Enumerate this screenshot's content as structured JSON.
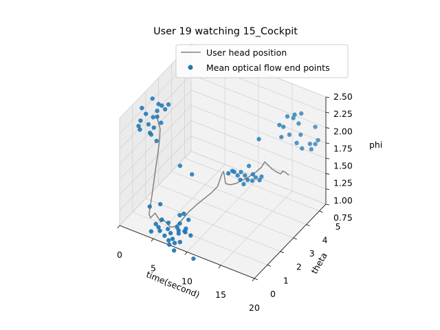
{
  "chart_data": {
    "type": "scatter-3d",
    "title": "User 19 watching 15_Cockpit",
    "xlabel": "time(second)",
    "ylabel": "theta",
    "zlabel": "phi",
    "xlim": [
      0,
      20
    ],
    "ylim": [
      0,
      5.5
    ],
    "zlim": [
      0.75,
      2.5
    ],
    "xticks": [
      "0",
      "5",
      "10",
      "15",
      "20"
    ],
    "yticks": [
      "0",
      "1",
      "2",
      "3",
      "4",
      "5"
    ],
    "zticks": [
      "0.75",
      "1.00",
      "1.25",
      "1.50",
      "1.75",
      "2.00",
      "2.25",
      "2.50"
    ],
    "grid": true,
    "legend_position": "top-right",
    "colors": {
      "line": "#808080",
      "scatter": "#1f77b4"
    },
    "series": [
      {
        "name": "User head position",
        "kind": "line",
        "points": [
          [
            0.0,
            2.8,
            1.93
          ],
          [
            0.5,
            2.7,
            1.88
          ],
          [
            1.0,
            2.6,
            1.8
          ],
          [
            1.5,
            2.3,
            1.72
          ],
          [
            2.0,
            1.9,
            1.58
          ],
          [
            2.5,
            1.45,
            1.43
          ],
          [
            3.0,
            1.0,
            1.25
          ],
          [
            3.3,
            0.7,
            1.12
          ],
          [
            3.6,
            0.4,
            1.0
          ],
          [
            4.0,
            0.3,
            0.98
          ],
          [
            4.5,
            0.4,
            1.06
          ],
          [
            5.0,
            0.35,
            1.02
          ],
          [
            5.5,
            0.3,
            0.98
          ],
          [
            6.0,
            0.32,
            1.02
          ],
          [
            7.0,
            0.3,
            0.96
          ],
          [
            7.5,
            0.35,
            0.98
          ],
          [
            8.0,
            0.5,
            1.04
          ],
          [
            8.5,
            0.9,
            1.14
          ],
          [
            9.0,
            1.3,
            1.2
          ],
          [
            9.5,
            1.6,
            1.25
          ],
          [
            10.0,
            1.9,
            1.3
          ],
          [
            10.5,
            2.1,
            1.38
          ],
          [
            10.8,
            2.25,
            1.55
          ],
          [
            11.0,
            2.3,
            1.6
          ],
          [
            11.2,
            2.35,
            1.4
          ],
          [
            11.5,
            2.55,
            1.35
          ],
          [
            12.0,
            2.75,
            1.35
          ],
          [
            12.5,
            2.95,
            1.38
          ],
          [
            13.0,
            3.2,
            1.4
          ],
          [
            13.5,
            3.45,
            1.44
          ],
          [
            14.0,
            3.65,
            1.5
          ],
          [
            14.3,
            3.75,
            1.58
          ],
          [
            14.6,
            3.85,
            1.52
          ],
          [
            15.0,
            3.95,
            1.45
          ],
          [
            15.5,
            4.05,
            1.4
          ],
          [
            16.0,
            4.1,
            1.38
          ],
          [
            16.3,
            4.1,
            1.44
          ],
          [
            16.6,
            4.15,
            1.42
          ],
          [
            17.0,
            4.2,
            1.38
          ]
        ]
      },
      {
        "name": "Mean optical flow end points",
        "kind": "scatter",
        "points": [
          [
            0.7,
            1.35,
            2.4
          ],
          [
            0.6,
            1.3,
            2.2
          ],
          [
            1.1,
            1.45,
            2.3
          ],
          [
            1.5,
            1.75,
            2.5
          ],
          [
            0.3,
            1.3,
            2.1
          ],
          [
            0.5,
            1.3,
            2.05
          ],
          [
            2.0,
            1.85,
            2.3
          ],
          [
            2.4,
            1.75,
            2.45
          ],
          [
            2.6,
            1.9,
            2.4
          ],
          [
            3.2,
            2.1,
            2.4
          ],
          [
            1.6,
            1.75,
            2.2
          ],
          [
            2.3,
            1.7,
            2.25
          ],
          [
            2.7,
            2.1,
            2.3
          ],
          [
            1.2,
            1.6,
            2.1
          ],
          [
            1.8,
            1.7,
            2.05
          ],
          [
            2.4,
            1.95,
            2.1
          ],
          [
            1.6,
            1.5,
            2.0
          ],
          [
            1.6,
            1.6,
            1.95
          ],
          [
            2.2,
            1.7,
            1.85
          ],
          [
            3.5,
            0.5,
            1.1
          ],
          [
            4.4,
            0.85,
            1.1
          ],
          [
            4.7,
            0.35,
            0.9
          ],
          [
            5.2,
            0.55,
            0.95
          ],
          [
            4.2,
            0.25,
            0.78
          ],
          [
            5.0,
            0.4,
            0.85
          ],
          [
            5.8,
            0.75,
            0.88
          ],
          [
            7.0,
            1.0,
            1.0
          ],
          [
            7.4,
            1.1,
            1.02
          ],
          [
            7.1,
            0.95,
            0.88
          ],
          [
            8.1,
            1.1,
            0.95
          ],
          [
            5.2,
            0.4,
            0.8
          ],
          [
            6.0,
            0.6,
            0.82
          ],
          [
            7.0,
            0.8,
            0.85
          ],
          [
            7.9,
            0.9,
            0.8
          ],
          [
            5.9,
            0.4,
            0.75
          ],
          [
            6.6,
            0.5,
            0.8
          ],
          [
            7.3,
            0.75,
            0.82
          ],
          [
            8.1,
            0.9,
            0.85
          ],
          [
            6.5,
            0.4,
            0.7
          ],
          [
            6.9,
            0.5,
            0.72
          ],
          [
            7.5,
            0.65,
            0.8
          ],
          [
            8.2,
            0.8,
            0.82
          ],
          [
            9.0,
            0.8,
            0.8
          ],
          [
            6.7,
            0.35,
            0.65
          ],
          [
            7.3,
            0.45,
            0.68
          ],
          [
            7.9,
            0.55,
            0.7
          ],
          [
            7.5,
            0.3,
            0.6
          ],
          [
            9.8,
            0.6,
            0.5
          ],
          [
            12.2,
            2.5,
            1.6
          ],
          [
            12.8,
            2.7,
            1.58
          ],
          [
            13.4,
            3.0,
            1.64
          ],
          [
            12.6,
            2.55,
            1.55
          ],
          [
            13.2,
            2.8,
            1.52
          ],
          [
            13.8,
            3.1,
            1.5
          ],
          [
            12.9,
            2.6,
            1.48
          ],
          [
            13.5,
            2.85,
            1.45
          ],
          [
            14.1,
            3.15,
            1.45
          ],
          [
            14.6,
            3.35,
            1.44
          ],
          [
            13.2,
            2.7,
            1.4
          ],
          [
            13.9,
            3.0,
            1.42
          ],
          [
            14.5,
            3.25,
            1.4
          ],
          [
            12.0,
            2.45,
            1.62
          ],
          [
            11.7,
            2.3,
            1.6
          ],
          [
            14.3,
            3.3,
            2.05
          ],
          [
            16.0,
            4.0,
            2.2
          ],
          [
            16.6,
            4.3,
            2.3
          ],
          [
            17.1,
            4.5,
            2.25
          ],
          [
            17.2,
            4.55,
            2.3
          ],
          [
            17.8,
            4.75,
            2.3
          ],
          [
            16.3,
            4.15,
            2.15
          ],
          [
            17.6,
            4.65,
            2.15
          ],
          [
            16.2,
            4.05,
            2.0
          ],
          [
            16.8,
            4.35,
            2.0
          ],
          [
            17.7,
            4.75,
            1.95
          ],
          [
            19.1,
            5.15,
            2.05
          ],
          [
            18.7,
            4.95,
            1.8
          ],
          [
            18.9,
            4.95,
            1.72
          ],
          [
            19.3,
            5.05,
            1.8
          ],
          [
            19.5,
            5.15,
            1.85
          ],
          [
            17.5,
            4.55,
            1.85
          ],
          [
            18.0,
            4.7,
            1.75
          ],
          [
            5.4,
            1.85,
            1.55
          ],
          [
            6.3,
            2.3,
            1.35
          ]
        ]
      }
    ]
  }
}
